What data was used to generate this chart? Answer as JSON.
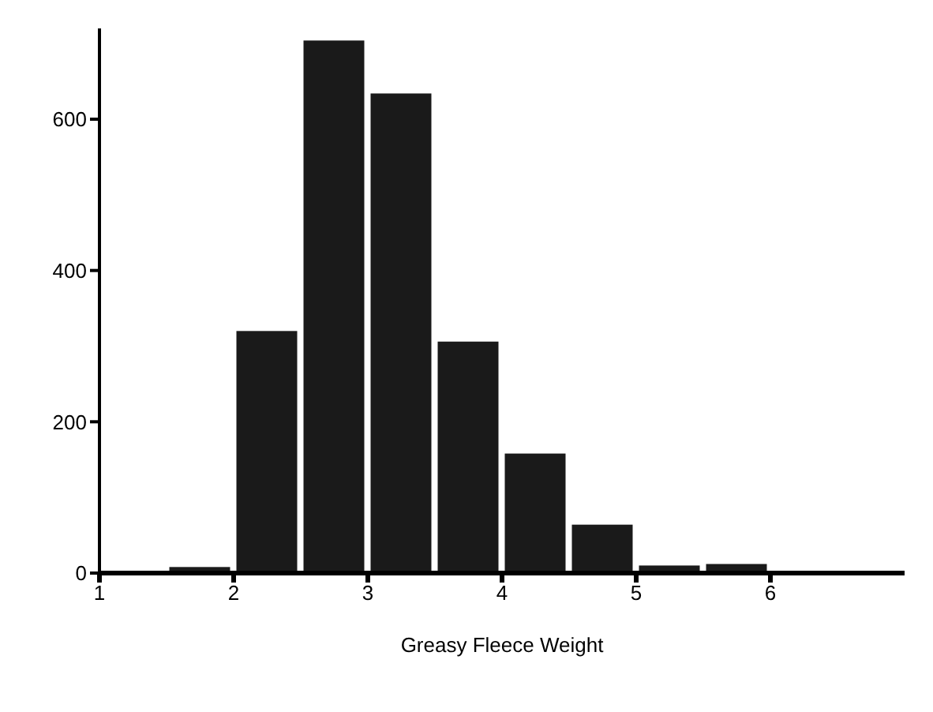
{
  "chart_data": {
    "type": "histogram",
    "xlabel": "Greasy Fleece Weight",
    "bins": [
      1.5,
      2,
      2.5,
      3,
      3.5,
      4,
      4.5,
      5,
      5.5,
      6
    ],
    "values": [
      8,
      320,
      704,
      634,
      306,
      158,
      64,
      10,
      12
    ],
    "color": "#1a1a1a",
    "xlim": [
      1,
      7
    ],
    "xticks": [
      1,
      2,
      3,
      4,
      5,
      6
    ],
    "ylim": [
      0,
      720
    ],
    "yticks": [
      0,
      200,
      400,
      600
    ],
    "grid": false
  }
}
